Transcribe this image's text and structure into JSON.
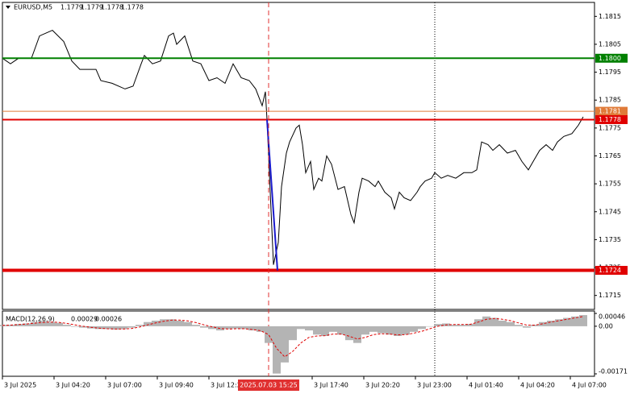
{
  "chart_data": [
    {
      "type": "line",
      "symbol": "EURUSD,M5",
      "quote": [
        1.1779,
        1.1779,
        1.1778,
        1.1778
      ],
      "color": "#000000",
      "xlim": [
        0,
        367
      ],
      "ylim": [
        1.171,
        1.182
      ],
      "yticks": [
        1.1815,
        1.1805,
        1.1795,
        1.1785,
        1.1775,
        1.1765,
        1.1755,
        1.1745,
        1.1735,
        1.1725,
        1.1715
      ],
      "xticks": [
        {
          "value": 0,
          "label": "3 Jul 2025"
        },
        {
          "value": 32,
          "label": "3 Jul 04:20"
        },
        {
          "value": 64,
          "label": "3 Jul 07:00"
        },
        {
          "value": 96,
          "label": "3 Jul 09:40"
        },
        {
          "value": 128,
          "label": "3 Jul 12:20"
        },
        {
          "value": 192,
          "label": "3 Jul 17:40"
        },
        {
          "value": 224,
          "label": "3 Jul 20:20"
        },
        {
          "value": 256,
          "label": "3 Jul 23:00"
        },
        {
          "value": 288,
          "label": "4 Jul 01:40"
        },
        {
          "value": 320,
          "label": "4 Jul 04:20"
        },
        {
          "value": 352,
          "label": "4 Jul 07:00"
        }
      ],
      "x": [
        0,
        5,
        10,
        18,
        23,
        27,
        31,
        38,
        43,
        48,
        58,
        61,
        68,
        76,
        81,
        86,
        88,
        93,
        98,
        103,
        106,
        108,
        113,
        118,
        123,
        128,
        133,
        138,
        143,
        148,
        153,
        157,
        161,
        163,
        164,
        168,
        171,
        173,
        176,
        178,
        182,
        184,
        186,
        188,
        191,
        193,
        196,
        198,
        201,
        204,
        208,
        212,
        216,
        218,
        221,
        223,
        227,
        231,
        233,
        237,
        241,
        243,
        246,
        249,
        253,
        257,
        259,
        262,
        266,
        268,
        272,
        276,
        281,
        286,
        291,
        294,
        297,
        301,
        304,
        308,
        313,
        318,
        322,
        326,
        329,
        333,
        337,
        341,
        344,
        348,
        353,
        357,
        360
      ],
      "values": [
        1.18,
        1.1798,
        1.18,
        1.18,
        1.1808,
        1.1809,
        1.181,
        1.1806,
        1.1799,
        1.1796,
        1.1796,
        1.1792,
        1.1791,
        1.1789,
        1.179,
        1.1798,
        1.1801,
        1.1798,
        1.1799,
        1.1808,
        1.1809,
        1.1805,
        1.1808,
        1.1799,
        1.1798,
        1.1792,
        1.1793,
        1.1791,
        1.1798,
        1.1793,
        1.1792,
        1.1789,
        1.1783,
        1.1788,
        1.1778,
        1.1726,
        1.1734,
        1.1754,
        1.1766,
        1.177,
        1.1775,
        1.1776,
        1.1769,
        1.1759,
        1.1763,
        1.1753,
        1.1757,
        1.1756,
        1.1765,
        1.1762,
        1.1753,
        1.1754,
        1.1744,
        1.1741,
        1.1752,
        1.1757,
        1.1756,
        1.1754,
        1.1756,
        1.1752,
        1.175,
        1.1746,
        1.1752,
        1.175,
        1.1749,
        1.1752,
        1.1754,
        1.1756,
        1.1757,
        1.1759,
        1.1757,
        1.1758,
        1.1757,
        1.1759,
        1.1759,
        1.176,
        1.177,
        1.1769,
        1.1767,
        1.1769,
        1.1766,
        1.1767,
        1.1763,
        1.176,
        1.1763,
        1.1767,
        1.1769,
        1.1767,
        1.177,
        1.1772,
        1.1773,
        1.1776,
        1.1779
      ],
      "levels": [
        {
          "value": 1.18,
          "label": "1.1800",
          "color": "#008000",
          "width": 2
        },
        {
          "value": 1.1781,
          "color": "#e07b39",
          "width": 1
        },
        {
          "value": 1.1778,
          "color": "#e00000",
          "width": 2
        },
        {
          "value": 1.1724,
          "color": "#e00000",
          "width": 4
        }
      ],
      "drawn_line": {
        "color": "#1a1acc",
        "x": [
          164,
          170.5
        ],
        "values": [
          1.1778,
          1.1724
        ]
      },
      "separators": [
        268
      ],
      "cursor": {
        "value": 165,
        "label": "2025.07.03 15:25",
        "color": "#e03030"
      }
    },
    {
      "type": "macd",
      "title": "MACD(12,26,9)",
      "readings": [
        0.00029,
        0.00026
      ],
      "ylim": [
        -0.00171,
        0.00046
      ],
      "yticks": [
        0.00046,
        {
          "value": 0,
          "label": "0.00"
        },
        -0.00171
      ],
      "xlim": [
        0,
        367
      ],
      "x": [
        0,
        5,
        10,
        15,
        20,
        25,
        30,
        35,
        40,
        45,
        50,
        55,
        60,
        65,
        70,
        75,
        80,
        85,
        90,
        95,
        100,
        105,
        110,
        115,
        120,
        125,
        130,
        135,
        140,
        145,
        150,
        155,
        160,
        165,
        170,
        175,
        180,
        185,
        190,
        195,
        200,
        205,
        210,
        215,
        220,
        225,
        230,
        235,
        240,
        245,
        250,
        255,
        260,
        265,
        270,
        275,
        280,
        285,
        290,
        295,
        300,
        305,
        310,
        315,
        320,
        325,
        330,
        335,
        340,
        345,
        350,
        355,
        360
      ],
      "histogram": {
        "color": "#b4b4b4",
        "values": [
          5e-05,
          5e-05,
          8e-05,
          0.0001,
          0.00015,
          0.00018,
          0.00015,
          0.00012,
          5e-05,
          -2e-05,
          -5e-05,
          -8e-05,
          -0.0001,
          -0.0001,
          -0.00012,
          -0.0001,
          -5e-05,
          5e-05,
          0.00015,
          0.0002,
          0.00025,
          0.00025,
          0.0002,
          0.00015,
          5e-05,
          -5e-05,
          -0.0001,
          -0.00015,
          -0.0001,
          -8e-05,
          -0.0001,
          -0.00015,
          -0.0002,
          -0.0006,
          -0.0017,
          -0.0013,
          -0.0005,
          -0.0001,
          -0.00015,
          -0.0003,
          -0.00035,
          -0.0002,
          -0.0003,
          -0.0005,
          -0.0006,
          -0.0003,
          -0.0002,
          -0.00025,
          -0.0003,
          -0.00035,
          -0.0003,
          -0.0002,
          -0.0001,
          0,
          8e-05,
          0.0001,
          5e-05,
          5e-05,
          8e-05,
          0.00025,
          0.00035,
          0.0003,
          0.0002,
          0.00015,
          5e-05,
          -5e-05,
          5e-05,
          0.00015,
          0.0002,
          0.00025,
          0.0003,
          0.00035,
          0.0004
        ]
      },
      "signal": {
        "color": "#e00000",
        "values": [
          3e-05,
          4e-05,
          6e-05,
          8e-05,
          0.00011,
          0.00014,
          0.00015,
          0.00014,
          0.0001,
          5e-05,
          0,
          -4e-05,
          -7e-05,
          -9e-05,
          -0.0001,
          -0.0001,
          -8e-05,
          -3e-05,
          5e-05,
          0.00012,
          0.00018,
          0.00022,
          0.00022,
          0.00019,
          0.00013,
          5e-05,
          -2e-05,
          -8e-05,
          -0.0001,
          -9e-05,
          -9e-05,
          -0.00012,
          -0.00016,
          -0.0003,
          -0.0008,
          -0.0011,
          -0.0009,
          -0.0006,
          -0.0004,
          -0.00035,
          -0.00034,
          -0.00028,
          -0.00028,
          -0.00036,
          -0.00046,
          -0.0004,
          -0.0003,
          -0.00027,
          -0.00028,
          -0.00031,
          -0.0003,
          -0.00025,
          -0.00018,
          -9e-05,
          0,
          5e-05,
          6e-05,
          6e-05,
          7e-05,
          0.00015,
          0.00025,
          0.00028,
          0.00025,
          0.0002,
          0.00012,
          4e-05,
          4e-05,
          9e-05,
          0.00015,
          0.0002,
          0.00025,
          0.0003,
          0.00035
        ]
      }
    }
  ]
}
